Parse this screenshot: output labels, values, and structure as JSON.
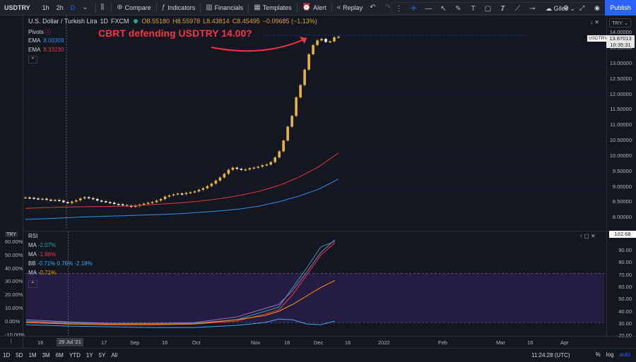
{
  "toolbar": {
    "symbol": "USDTRY",
    "intervals": [
      "1h",
      "2h",
      "D"
    ],
    "active_interval": "D",
    "compare": "Compare",
    "indicators": "Indicators",
    "financials": "Financials",
    "templates": "Templates",
    "alert": "Alert",
    "replay": "Replay",
    "user": "Giles",
    "publish": "Publish"
  },
  "legend": {
    "title": "U.S. Dollar / Turkish Lira",
    "interval": "1D",
    "source": "FXCM",
    "open": "O8.55180",
    "high": "H8.55978",
    "low": "L8.43814",
    "close": "C8.45495",
    "change": "−0.09685 (−1.13%)",
    "pivots": "Pivots",
    "ema1_label": "EMA",
    "ema1_value": "8.00309",
    "ema2_label": "EMA",
    "ema2_value": "8.33230"
  },
  "annotation": "CBRT defending USDTRY 14.00?",
  "price_axis": {
    "currency": "TRY",
    "ticks": [
      "14.00000",
      "13.50000",
      "13.00000",
      "12.50000",
      "12.00000",
      "11.50000",
      "11.00000",
      "10.50000",
      "10.00000",
      "9.50000",
      "9.00000",
      "8.50000",
      "8.00000"
    ],
    "last_price": "13.87013",
    "countdown": "10:35:31",
    "symbol_tag": "USDTRY"
  },
  "rsi_pane": {
    "label": "RSI",
    "current": "102.68",
    "currency_tag": "TRY",
    "legend": [
      {
        "label": "MA",
        "value": "-2.07%",
        "color": "#26a69a"
      },
      {
        "label": "MA",
        "value": "-1.66%",
        "color": "#f23645"
      },
      {
        "label": "BB",
        "value": "-0.71%  0.76%  -2.18%",
        "color": "#42a5f5"
      },
      {
        "label": "MA",
        "value": "-0.71%",
        "color": "#ff9800"
      }
    ],
    "right_ticks": [
      "90.00",
      "80.00",
      "70.00",
      "60.00",
      "50.00",
      "40.00",
      "30.00",
      "20.00"
    ],
    "left_ticks": [
      "60.00%",
      "50.00%",
      "40.00%",
      "30.00%",
      "20.00%",
      "10.00%",
      "0.00%",
      "-10.00%"
    ]
  },
  "time_axis": {
    "labels": [
      "16",
      "29 Jul '21",
      "17",
      "Sep",
      "16",
      "Oct",
      "Nov",
      "16",
      "Dec",
      "16",
      "2022",
      "Feb",
      "Mar",
      "16",
      "Apr"
    ]
  },
  "bottom": {
    "ranges": [
      "1D",
      "5D",
      "1M",
      "3M",
      "6M",
      "YTD",
      "1Y",
      "5Y",
      "All"
    ],
    "clock": "11:24:28 (UTC)",
    "percent": "%",
    "log": "log",
    "auto": "auto"
  },
  "chart_data": {
    "type": "candlestick",
    "yrange": [
      7.8,
      14.1
    ],
    "series": [
      {
        "name": "USDTRY",
        "values": [
          8.65,
          8.64,
          8.62,
          8.6,
          8.61,
          8.58,
          8.56,
          8.57,
          8.55,
          8.5,
          8.47,
          8.52,
          8.56,
          8.62,
          8.66,
          8.63,
          8.6,
          8.55,
          8.53,
          8.5,
          8.48,
          8.44,
          8.43,
          8.4,
          8.38,
          8.36,
          8.38,
          8.42,
          8.45,
          8.48,
          8.5,
          8.55,
          8.6,
          8.68,
          8.72,
          8.75,
          8.78,
          8.76,
          8.8,
          8.82,
          8.85,
          8.9,
          8.95,
          9.02,
          9.1,
          9.2,
          9.3,
          9.42,
          9.55,
          9.62,
          9.58,
          9.55,
          9.56,
          9.6,
          9.62,
          9.65,
          9.7,
          9.72,
          9.8,
          9.95,
          10.15,
          10.5,
          10.95,
          11.3,
          11.9,
          12.3,
          12.8,
          13.3,
          13.6,
          13.75,
          13.8,
          13.7,
          13.72,
          13.85,
          13.87
        ]
      },
      {
        "name": "EMA",
        "values": [
          7.94,
          7.96,
          7.99,
          8.02,
          8.04,
          8.06,
          8.08,
          8.1,
          8.13,
          8.17,
          8.22,
          8.28,
          8.38,
          8.52,
          8.7,
          8.92,
          9.25
        ]
      },
      {
        "name": "EMA",
        "values": [
          8.3,
          8.32,
          8.34,
          8.35,
          8.36,
          8.37,
          8.4,
          8.44,
          8.48,
          8.54,
          8.62,
          8.72,
          8.86,
          9.05,
          9.32,
          9.65,
          10.1
        ]
      }
    ]
  },
  "colors": {
    "candle_up": "#e8b23c",
    "ema_fast": "#2196f3",
    "ema_slow": "#e53935",
    "annotation": "#f23645",
    "accent": "#2962ff"
  }
}
